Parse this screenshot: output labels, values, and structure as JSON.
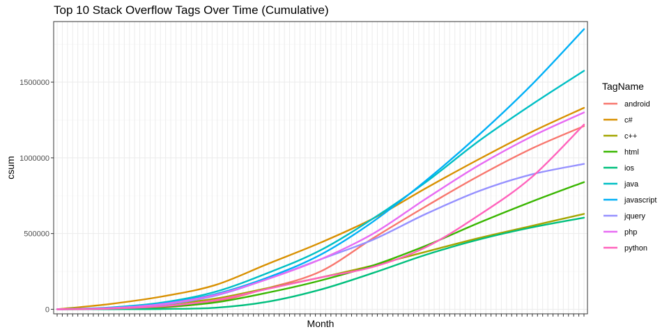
{
  "chart_data": {
    "type": "line",
    "title": "Top 10 Stack Overflow Tags Over Time (Cumulative)",
    "xlabel": "Month",
    "ylabel": "csum",
    "ylim": [
      -30000,
      1900000
    ],
    "y_ticks": [
      0,
      500000,
      1000000,
      1500000
    ],
    "y_tick_labels": [
      "0",
      "500000",
      "1000000",
      "1500000"
    ],
    "x_tick_count": 103,
    "x_tick_labels_shown": false,
    "grid": true,
    "legend": {
      "title": "TagName",
      "position": "right"
    },
    "x": [
      0,
      10,
      20,
      30,
      40,
      50,
      60,
      70,
      80,
      90,
      100
    ],
    "series": [
      {
        "name": "android",
        "color": "#F8766D",
        "values": [
          0,
          2000,
          12000,
          50000,
          140000,
          250000,
          470000,
          680000,
          880000,
          1060000,
          1210000
        ]
      },
      {
        "name": "c#",
        "color": "#D89000",
        "values": [
          0,
          35000,
          85000,
          160000,
          300000,
          440000,
          600000,
          800000,
          990000,
          1170000,
          1330000
        ]
      },
      {
        "name": "c++",
        "color": "#A3A500",
        "values": [
          0,
          8000,
          30000,
          70000,
          140000,
          210000,
          290000,
          380000,
          470000,
          550000,
          630000
        ]
      },
      {
        "name": "html",
        "color": "#39B600",
        "values": [
          0,
          3000,
          15000,
          45000,
          110000,
          190000,
          290000,
          420000,
          570000,
          710000,
          840000
        ]
      },
      {
        "name": "ios",
        "color": "#00BF7D",
        "values": [
          0,
          500,
          2000,
          10000,
          50000,
          130000,
          240000,
          360000,
          460000,
          540000,
          605000
        ]
      },
      {
        "name": "java",
        "color": "#00BFC4",
        "values": [
          0,
          12000,
          45000,
          115000,
          240000,
          390000,
          600000,
          840000,
          1110000,
          1350000,
          1575000
        ]
      },
      {
        "name": "javascript",
        "color": "#00B0F6",
        "values": [
          0,
          10000,
          40000,
          100000,
          210000,
          360000,
          580000,
          850000,
          1150000,
          1480000,
          1850000
        ]
      },
      {
        "name": "jquery",
        "color": "#9590FF",
        "values": [
          0,
          6000,
          30000,
          90000,
          200000,
          330000,
          460000,
          630000,
          780000,
          890000,
          960000
        ]
      },
      {
        "name": "php",
        "color": "#E76BF3",
        "values": [
          0,
          8000,
          35000,
          95000,
          200000,
          330000,
          500000,
          730000,
          950000,
          1140000,
          1300000
        ]
      },
      {
        "name": "python",
        "color": "#FF62BC",
        "values": [
          0,
          4000,
          20000,
          60000,
          135000,
          210000,
          280000,
          410000,
          620000,
          870000,
          1220000
        ]
      }
    ]
  }
}
